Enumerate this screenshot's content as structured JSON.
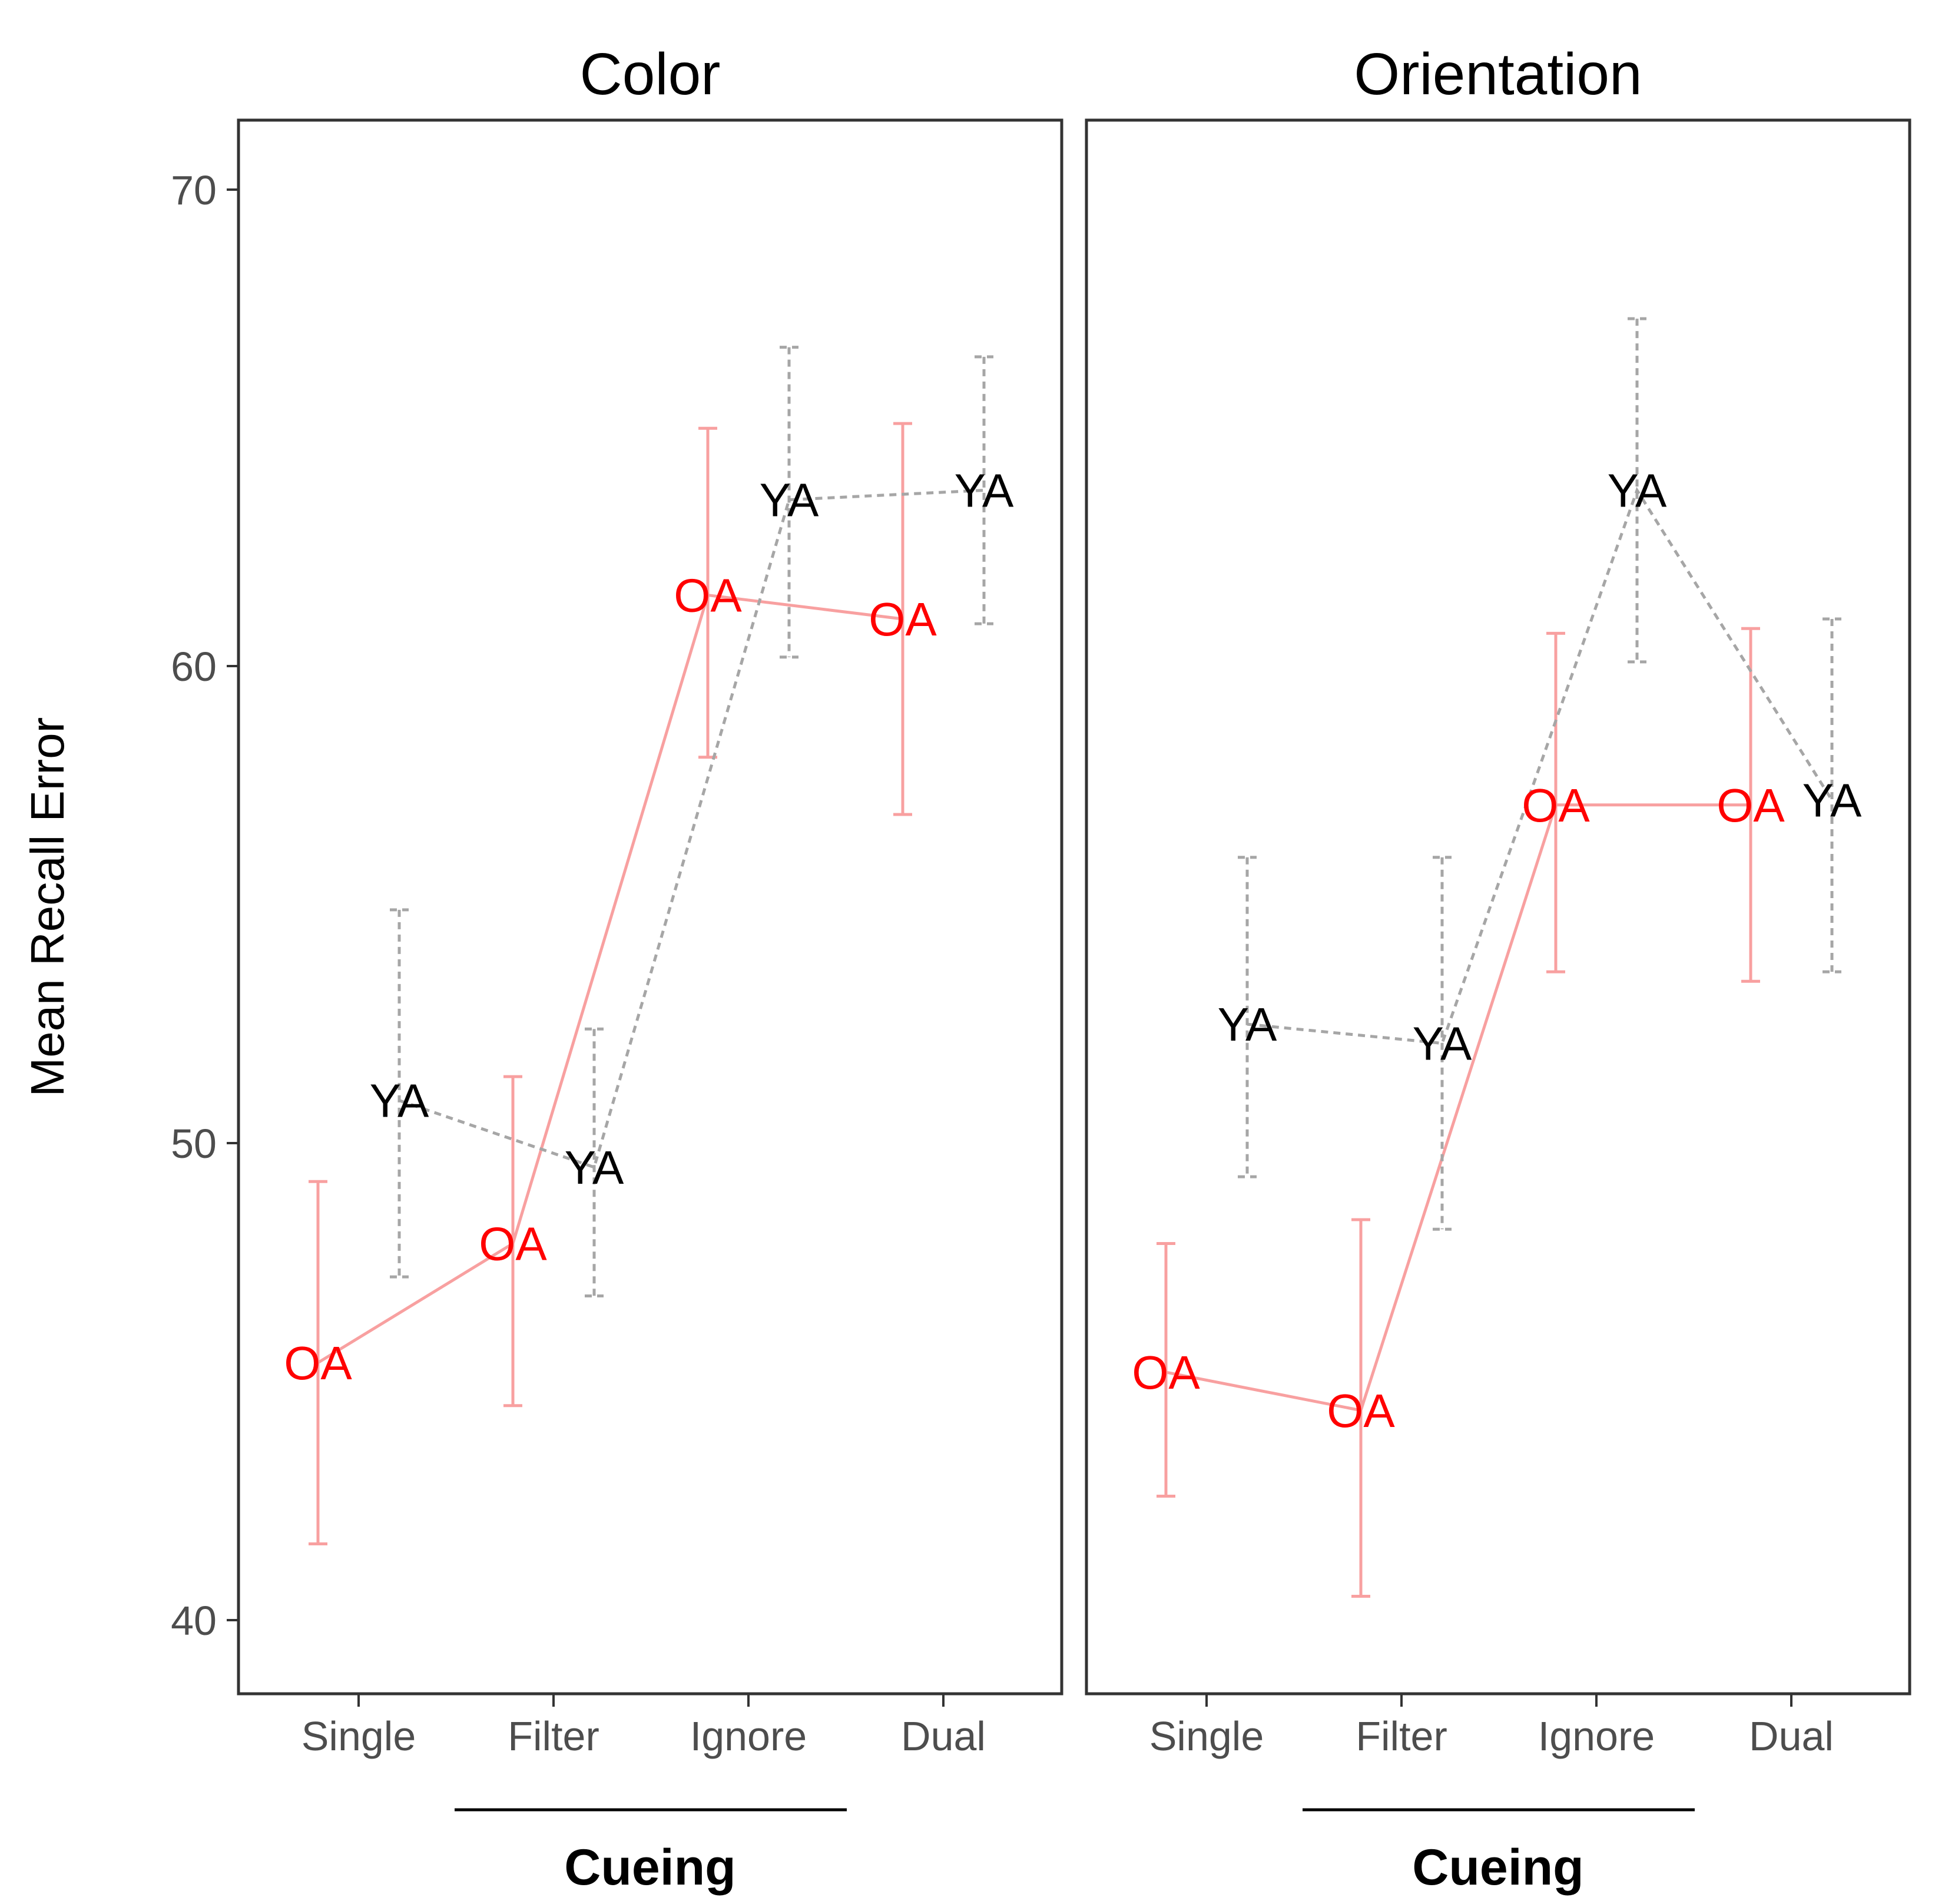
{
  "chart_data": {
    "type": "line",
    "ylabel": "Mean Recall Error",
    "ylim": [
      38.6,
      71.6
    ],
    "yticks": [
      40,
      50,
      60,
      70
    ],
    "categories": [
      "Single",
      "Filter",
      "Ignore",
      "Dual"
    ],
    "group_label": "Cueing",
    "colors": {
      "OA": "#ff0000",
      "OA_line": "#f8a0a0",
      "YA": "#000000",
      "YA_line": "#a6a6a6"
    },
    "panels": [
      {
        "title": "Color",
        "series": [
          {
            "name": "OA",
            "values": [
              45.4,
              47.9,
              61.5,
              61.0
            ],
            "ci_low": [
              41.6,
              44.5,
              58.1,
              56.9
            ],
            "ci_high": [
              49.2,
              51.4,
              65.0,
              65.1
            ]
          },
          {
            "name": "YA",
            "values": [
              50.9,
              49.5,
              63.5,
              63.7
            ],
            "ci_low": [
              47.2,
              46.8,
              60.2,
              60.9
            ],
            "ci_high": [
              54.9,
              52.4,
              66.7,
              66.5
            ]
          }
        ]
      },
      {
        "title": "Orientation",
        "series": [
          {
            "name": "OA",
            "values": [
              45.2,
              44.4,
              57.1,
              57.1
            ],
            "ci_low": [
              42.6,
              40.5,
              53.6,
              53.4
            ],
            "ci_high": [
              47.9,
              48.4,
              60.7,
              60.8
            ]
          },
          {
            "name": "YA",
            "values": [
              52.5,
              52.1,
              63.7,
              57.2
            ],
            "ci_low": [
              49.3,
              48.2,
              60.1,
              53.6
            ],
            "ci_high": [
              56.0,
              56.0,
              67.3,
              61.0
            ]
          }
        ]
      }
    ]
  }
}
